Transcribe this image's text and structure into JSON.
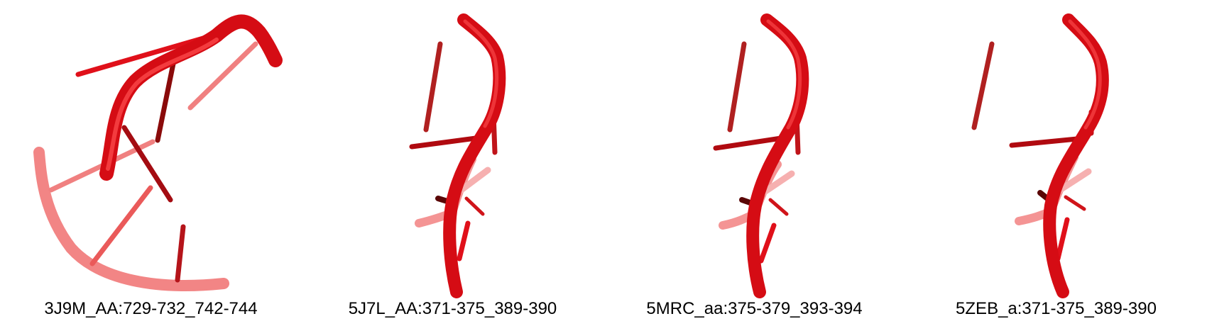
{
  "figure": {
    "background_color": "#ffffff",
    "colors": {
      "strand": "#e0101a",
      "strand_highlight": "#ff4a4a",
      "base_dark": "#8a0a0a",
      "base_medium": "#c8141a",
      "faded": "#f07070",
      "faded_light": "#f6b0b0"
    },
    "panels": [
      {
        "id": "p1",
        "label": "3J9M_AA:729-732_742-744"
      },
      {
        "id": "p2",
        "label": "5J7L_AA:371-375_389-390"
      },
      {
        "id": "p3",
        "label": "5MRC_aa:375-379_393-394"
      },
      {
        "id": "p4",
        "label": "5ZEB_a:371-375_389-390"
      }
    ]
  }
}
